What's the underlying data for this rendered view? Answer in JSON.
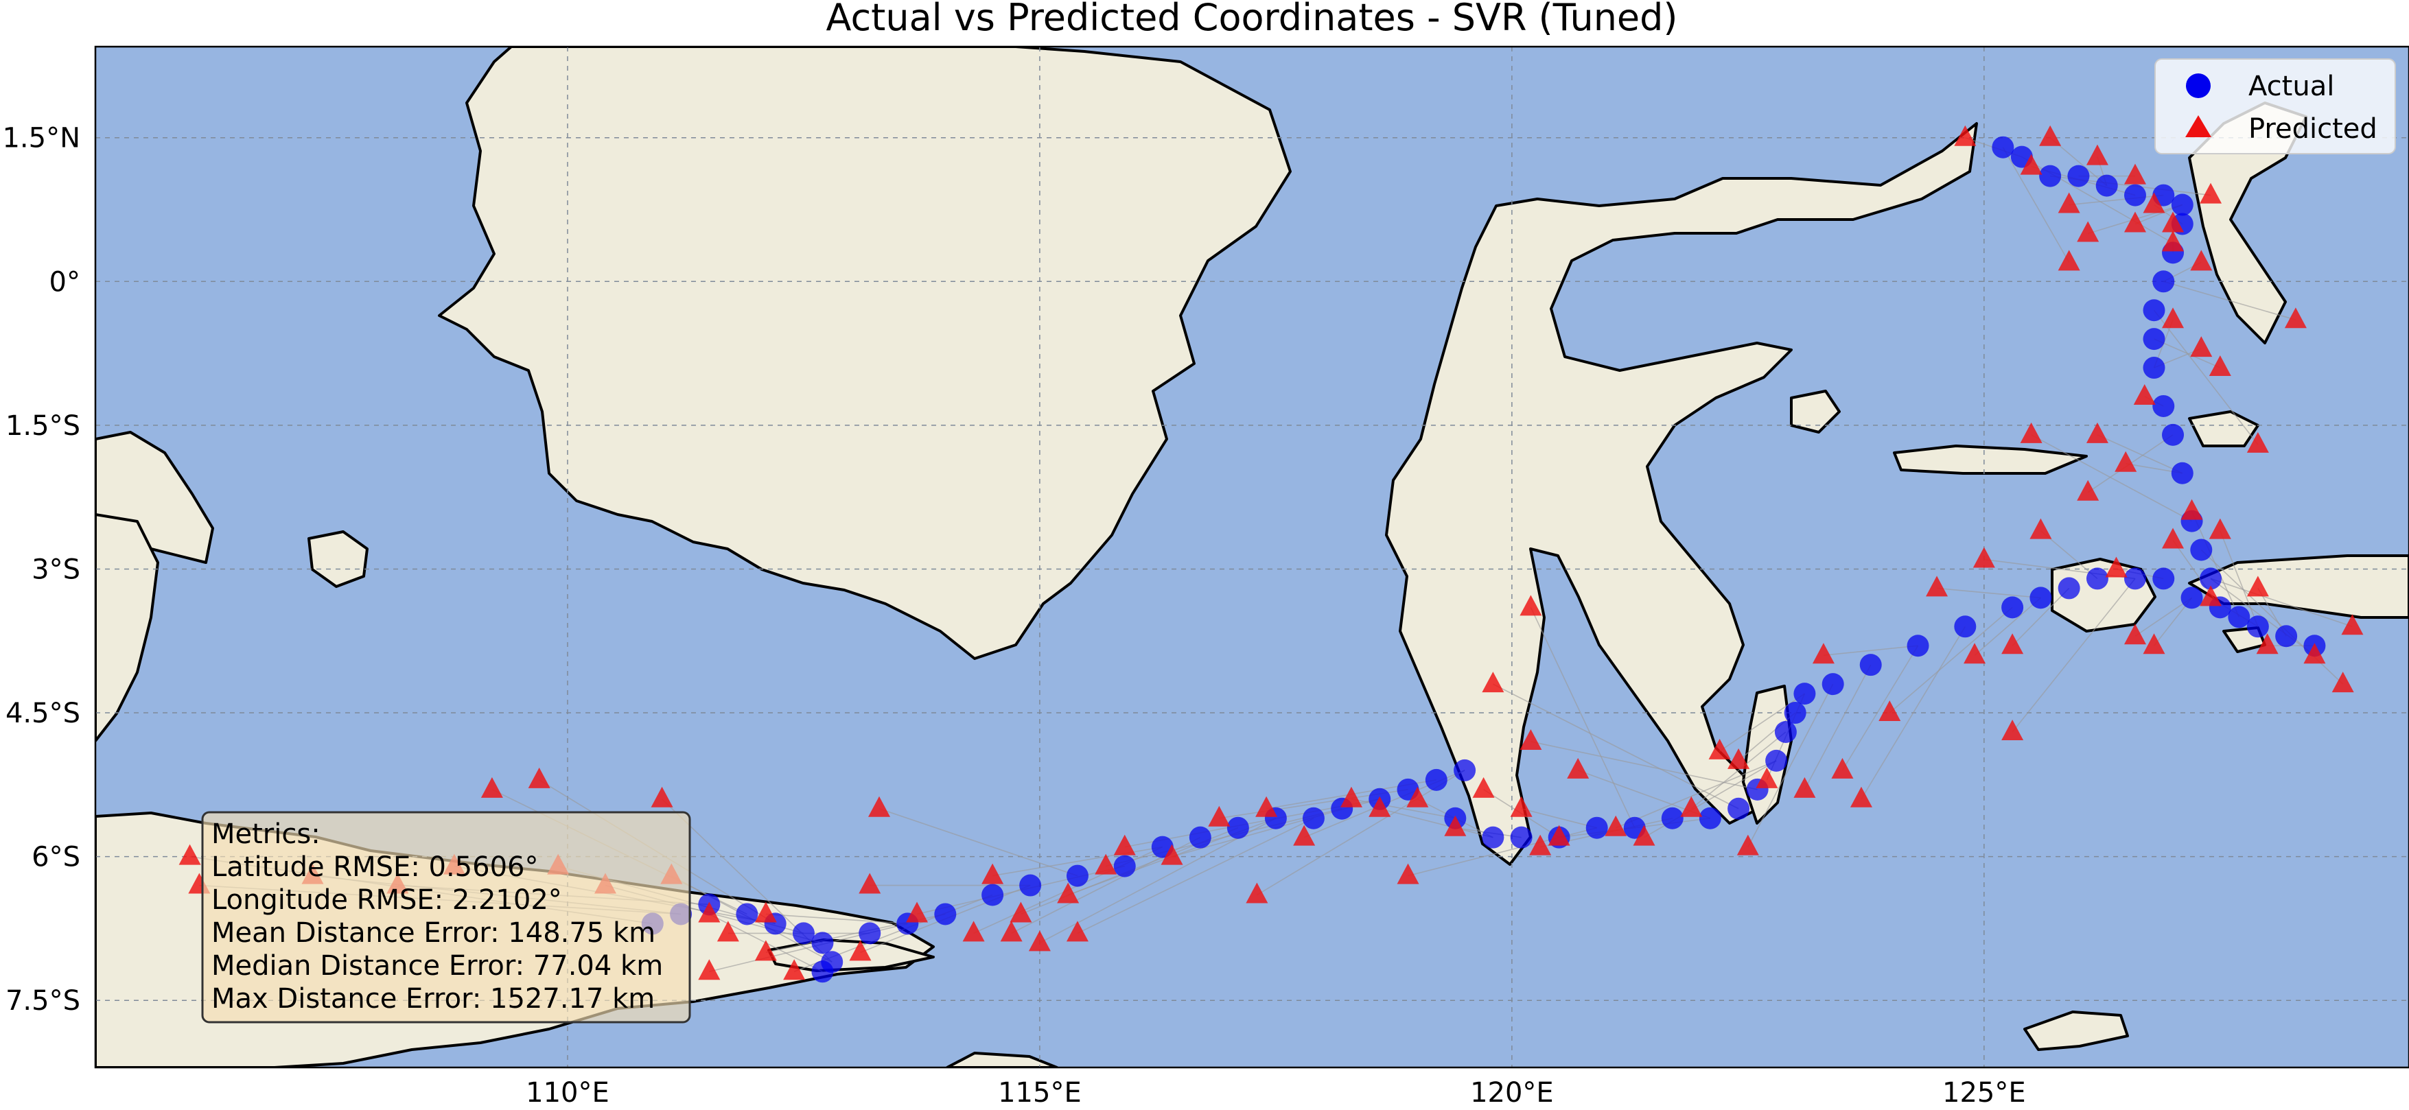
{
  "chart_data": {
    "type": "scatter",
    "title": "Actual vs Predicted Coordinates - SVR (Tuned)",
    "xlim": [
      105.0,
      129.5
    ],
    "ylim": [
      -8.2,
      2.45
    ],
    "xticks": [
      {
        "value": 110,
        "label": "110°E"
      },
      {
        "value": 115,
        "label": "115°E"
      },
      {
        "value": 120,
        "label": "120°E"
      },
      {
        "value": 125,
        "label": "125°E"
      }
    ],
    "yticks": [
      {
        "value": 1.5,
        "label": "1.5°N"
      },
      {
        "value": 0,
        "label": "0°"
      },
      {
        "value": -1.5,
        "label": "1.5°S"
      },
      {
        "value": -3,
        "label": "3°S"
      },
      {
        "value": -4.5,
        "label": "4.5°S"
      },
      {
        "value": -6,
        "label": "6°S"
      },
      {
        "value": -7.5,
        "label": "7.5°S"
      }
    ],
    "grid": true,
    "legend_position": "top-right",
    "series": [
      {
        "name": "Actual",
        "marker": "circle",
        "color": "#0000ee",
        "points": [
          [
            110.9,
            -6.7
          ],
          [
            111.2,
            -6.6
          ],
          [
            111.5,
            -6.5
          ],
          [
            111.9,
            -6.6
          ],
          [
            112.2,
            -6.7
          ],
          [
            112.5,
            -6.8
          ],
          [
            112.7,
            -6.9
          ],
          [
            112.8,
            -7.1
          ],
          [
            112.7,
            -7.2
          ],
          [
            113.2,
            -6.8
          ],
          [
            113.6,
            -6.7
          ],
          [
            114.0,
            -6.6
          ],
          [
            114.5,
            -6.4
          ],
          [
            114.9,
            -6.3
          ],
          [
            115.4,
            -6.2
          ],
          [
            115.9,
            -6.1
          ],
          [
            116.3,
            -5.9
          ],
          [
            116.7,
            -5.8
          ],
          [
            117.1,
            -5.7
          ],
          [
            117.5,
            -5.6
          ],
          [
            117.9,
            -5.6
          ],
          [
            118.2,
            -5.5
          ],
          [
            118.6,
            -5.4
          ],
          [
            118.9,
            -5.3
          ],
          [
            119.2,
            -5.2
          ],
          [
            119.5,
            -5.1
          ],
          [
            119.4,
            -5.6
          ],
          [
            119.8,
            -5.8
          ],
          [
            120.1,
            -5.8
          ],
          [
            120.5,
            -5.8
          ],
          [
            120.9,
            -5.7
          ],
          [
            121.3,
            -5.7
          ],
          [
            121.7,
            -5.6
          ],
          [
            122.1,
            -5.6
          ],
          [
            122.4,
            -5.5
          ],
          [
            122.6,
            -5.3
          ],
          [
            122.8,
            -5.0
          ],
          [
            122.9,
            -4.7
          ],
          [
            123.0,
            -4.5
          ],
          [
            123.1,
            -4.3
          ],
          [
            123.4,
            -4.2
          ],
          [
            123.8,
            -4.0
          ],
          [
            124.3,
            -3.8
          ],
          [
            124.8,
            -3.6
          ],
          [
            125.3,
            -3.4
          ],
          [
            125.6,
            -3.3
          ],
          [
            125.9,
            -3.2
          ],
          [
            126.2,
            -3.1
          ],
          [
            126.6,
            -3.1
          ],
          [
            126.9,
            -3.1
          ],
          [
            127.2,
            -3.3
          ],
          [
            127.5,
            -3.4
          ],
          [
            127.7,
            -3.5
          ],
          [
            127.9,
            -3.6
          ],
          [
            128.2,
            -3.7
          ],
          [
            128.5,
            -3.8
          ],
          [
            127.4,
            -3.1
          ],
          [
            127.3,
            -2.8
          ],
          [
            127.2,
            -2.5
          ],
          [
            127.1,
            -2.0
          ],
          [
            127.0,
            -1.6
          ],
          [
            126.9,
            -1.3
          ],
          [
            126.8,
            -0.9
          ],
          [
            126.8,
            -0.6
          ],
          [
            126.8,
            -0.3
          ],
          [
            126.9,
            0.0
          ],
          [
            127.0,
            0.3
          ],
          [
            127.1,
            0.6
          ],
          [
            127.1,
            0.8
          ],
          [
            126.9,
            0.9
          ],
          [
            126.6,
            0.9
          ],
          [
            126.3,
            1.0
          ],
          [
            126.0,
            1.1
          ],
          [
            125.7,
            1.1
          ],
          [
            125.4,
            1.3
          ],
          [
            125.2,
            1.4
          ]
        ]
      },
      {
        "name": "Predicted",
        "marker": "triangle",
        "color": "#ee1111",
        "points": [
          [
            106.0,
            -6.0
          ],
          [
            106.1,
            -6.3
          ],
          [
            107.3,
            -6.2
          ],
          [
            108.2,
            -6.3
          ],
          [
            109.2,
            -5.3
          ],
          [
            109.7,
            -5.2
          ],
          [
            108.8,
            -6.1
          ],
          [
            109.9,
            -6.1
          ],
          [
            110.4,
            -6.3
          ],
          [
            111.0,
            -5.4
          ],
          [
            111.1,
            -6.2
          ],
          [
            111.5,
            -6.6
          ],
          [
            111.7,
            -6.8
          ],
          [
            111.5,
            -7.2
          ],
          [
            112.1,
            -6.6
          ],
          [
            112.1,
            -7.0
          ],
          [
            112.4,
            -7.2
          ],
          [
            113.1,
            -7.0
          ],
          [
            113.2,
            -6.3
          ],
          [
            113.3,
            -5.5
          ],
          [
            113.7,
            -6.6
          ],
          [
            114.3,
            -6.8
          ],
          [
            114.5,
            -6.2
          ],
          [
            114.7,
            -6.8
          ],
          [
            114.8,
            -6.6
          ],
          [
            115.0,
            -6.9
          ],
          [
            115.3,
            -6.4
          ],
          [
            115.4,
            -6.8
          ],
          [
            115.7,
            -6.1
          ],
          [
            115.9,
            -5.9
          ],
          [
            116.4,
            -6.0
          ],
          [
            116.9,
            -5.6
          ],
          [
            117.4,
            -5.5
          ],
          [
            117.8,
            -5.8
          ],
          [
            117.3,
            -6.4
          ],
          [
            118.3,
            -5.4
          ],
          [
            118.6,
            -5.5
          ],
          [
            119.0,
            -5.4
          ],
          [
            119.4,
            -5.7
          ],
          [
            119.7,
            -5.3
          ],
          [
            118.9,
            -6.2
          ],
          [
            120.1,
            -5.5
          ],
          [
            120.2,
            -3.4
          ],
          [
            120.3,
            -5.9
          ],
          [
            120.5,
            -5.8
          ],
          [
            120.7,
            -5.1
          ],
          [
            119.8,
            -4.2
          ],
          [
            120.2,
            -4.8
          ],
          [
            121.1,
            -5.7
          ],
          [
            121.4,
            -5.8
          ],
          [
            121.9,
            -5.5
          ],
          [
            122.4,
            -5.0
          ],
          [
            122.7,
            -5.2
          ],
          [
            122.2,
            -4.9
          ],
          [
            122.5,
            -5.9
          ],
          [
            123.1,
            -5.3
          ],
          [
            123.3,
            -3.9
          ],
          [
            123.5,
            -5.1
          ],
          [
            123.7,
            -5.4
          ],
          [
            124.0,
            -4.5
          ],
          [
            124.5,
            -3.2
          ],
          [
            124.9,
            -3.9
          ],
          [
            125.3,
            -3.8
          ],
          [
            125.6,
            -2.6
          ],
          [
            125.3,
            -4.7
          ],
          [
            125.0,
            -2.9
          ],
          [
            126.4,
            -3.0
          ],
          [
            126.6,
            -3.7
          ],
          [
            126.8,
            -3.8
          ],
          [
            127.0,
            -2.7
          ],
          [
            127.2,
            -2.4
          ],
          [
            127.5,
            -2.6
          ],
          [
            127.4,
            -3.3
          ],
          [
            127.9,
            -3.2
          ],
          [
            128.0,
            -3.8
          ],
          [
            128.5,
            -3.9
          ],
          [
            128.9,
            -3.6
          ],
          [
            128.8,
            -4.2
          ],
          [
            125.5,
            -1.6
          ],
          [
            126.2,
            -1.6
          ],
          [
            126.5,
            -1.9
          ],
          [
            126.1,
            -2.2
          ],
          [
            126.7,
            -1.2
          ],
          [
            127.0,
            -0.4
          ],
          [
            127.3,
            -0.7
          ],
          [
            127.5,
            -0.9
          ],
          [
            127.9,
            -1.7
          ],
          [
            128.3,
            -0.4
          ],
          [
            127.3,
            0.2
          ],
          [
            127.0,
            0.6
          ],
          [
            126.8,
            0.8
          ],
          [
            126.6,
            0.6
          ],
          [
            126.1,
            0.5
          ],
          [
            125.9,
            0.8
          ],
          [
            125.5,
            1.2
          ],
          [
            125.7,
            1.5
          ],
          [
            126.2,
            1.3
          ],
          [
            126.6,
            1.1
          ],
          [
            127.4,
            0.9
          ],
          [
            127.0,
            0.4
          ],
          [
            124.8,
            1.5
          ],
          [
            125.9,
            0.2
          ]
        ]
      }
    ]
  },
  "legend": {
    "items": [
      "Actual",
      "Predicted"
    ]
  },
  "metrics": {
    "header": "Metrics:",
    "lines": [
      "Latitude RMSE: 0.5606°",
      "Longitude RMSE: 2.2102°",
      "Mean Distance Error: 148.75 km",
      "Median Distance Error: 77.04 km",
      "Max Distance Error: 1527.17 km"
    ]
  },
  "colors": {
    "ocean": "#97b5e1",
    "land": "#efecdc",
    "actual": "#0000ee",
    "predicted": "#ee1111",
    "connector": "#9a9a9a"
  }
}
